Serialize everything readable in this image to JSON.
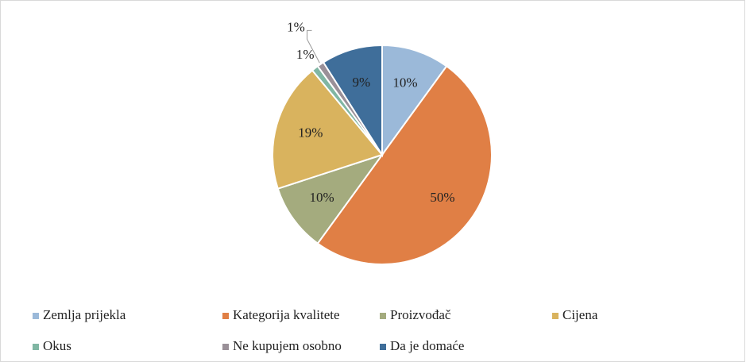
{
  "chart_data": {
    "type": "pie",
    "categories": [
      "Zemlja prijekla",
      "Kategorija kvalitete",
      "Proizvođač",
      "Cijena",
      "Okus",
      "Ne kupujem osobno",
      "Da je domaće"
    ],
    "values": [
      10,
      50,
      10,
      19,
      1,
      1,
      9
    ],
    "value_labels": [
      "10%",
      "50%",
      "10%",
      "19%",
      "1%",
      "1%",
      "9%"
    ],
    "colors": [
      "#9bb9d9",
      "#e07f45",
      "#a4ab7e",
      "#d9b35e",
      "#80b6a3",
      "#9a9098",
      "#3f6e9a"
    ],
    "legend": "bottom"
  }
}
